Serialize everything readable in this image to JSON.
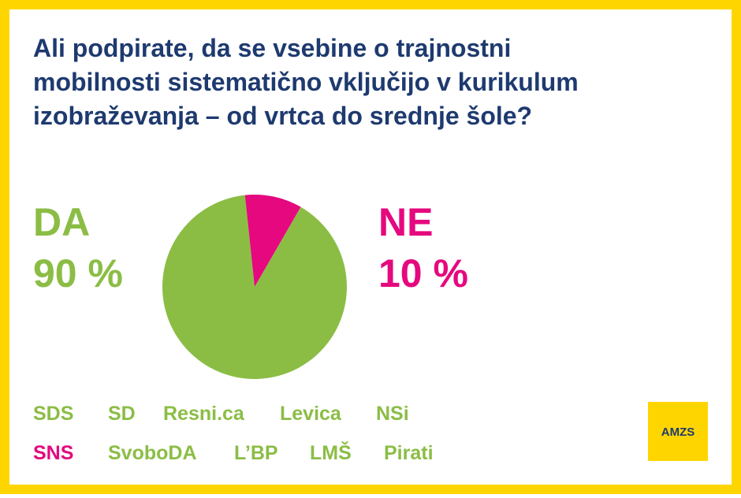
{
  "chart_data": {
    "type": "pie",
    "title": [
      "Ali podpirate, da se vsebine o trajnostni",
      "mobilnosti sistematično vključijo v kurikulum",
      "izobraževanja – od vrtca do srednje šole?"
    ],
    "categories": [
      "DA",
      "NE"
    ],
    "values": [
      90,
      10
    ],
    "value_labels": [
      "90 %",
      "10 %"
    ],
    "colors": [
      "#8bbd45",
      "#e5087e"
    ]
  },
  "parties": [
    {
      "name": "SDS",
      "color": "#8bbd45"
    },
    {
      "name": "SD",
      "color": "#8bbd45"
    },
    {
      "name": "Resni.ca",
      "color": "#8bbd45"
    },
    {
      "name": "Levica",
      "color": "#8bbd45"
    },
    {
      "name": "NSi",
      "color": "#8bbd45"
    },
    {
      "name": "SNS",
      "color": "#e5087e"
    },
    {
      "name": "SvoboDA",
      "color": "#8bbd45"
    },
    {
      "name": "L’BP",
      "color": "#8bbd45"
    },
    {
      "name": "LMŠ",
      "color": "#8bbd45"
    },
    {
      "name": "Pirati",
      "color": "#8bbd45"
    }
  ],
  "logo": "AMZS"
}
